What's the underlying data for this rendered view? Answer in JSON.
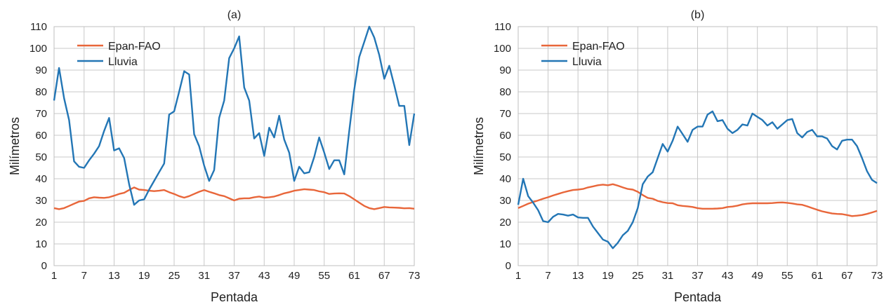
{
  "chart_data": [
    {
      "type": "line",
      "title": "(a)",
      "xlabel": "Pentada",
      "ylabel": "Milímetros",
      "xlim": [
        1,
        73
      ],
      "ylim": [
        0,
        110
      ],
      "x_ticks": [
        "1",
        "7",
        "13",
        "19",
        "25",
        "31",
        "37",
        "43",
        "49",
        "55",
        "61",
        "67",
        "73"
      ],
      "y_ticks": [
        "0",
        "10",
        "20",
        "30",
        "40",
        "50",
        "60",
        "70",
        "80",
        "90",
        "100",
        "110"
      ],
      "grid": true,
      "legend": "top-left",
      "x": [
        1,
        2,
        3,
        4,
        5,
        6,
        7,
        8,
        9,
        10,
        11,
        12,
        13,
        14,
        15,
        16,
        17,
        18,
        19,
        20,
        21,
        22,
        23,
        24,
        25,
        26,
        27,
        28,
        29,
        30,
        31,
        32,
        33,
        34,
        35,
        36,
        37,
        38,
        39,
        40,
        41,
        42,
        43,
        44,
        45,
        46,
        47,
        48,
        49,
        50,
        51,
        52,
        53,
        54,
        55,
        56,
        57,
        58,
        59,
        60,
        61,
        62,
        63,
        64,
        65,
        66,
        67,
        68,
        69,
        70,
        71,
        72,
        73
      ],
      "series": [
        {
          "name": "Epan-FAO",
          "color": "#e8663a",
          "values": [
            26.5,
            26,
            26.5,
            27.5,
            28.5,
            29.5,
            29.8,
            31,
            31.5,
            31.3,
            31.2,
            31.5,
            32.2,
            33,
            33.5,
            34.8,
            36,
            35,
            34.8,
            34.5,
            34.3,
            34.5,
            34.8,
            33.8,
            33,
            32,
            31.3,
            32,
            33,
            34,
            34.8,
            34,
            33.3,
            32.5,
            32,
            31,
            30,
            30.8,
            31,
            31,
            31.5,
            31.8,
            31.3,
            31.5,
            31.8,
            32.5,
            33.3,
            33.8,
            34.5,
            34.8,
            35.2,
            35,
            34.8,
            34.2,
            33.8,
            33,
            33.2,
            33.3,
            33.2,
            32,
            30.5,
            29,
            27.5,
            26.5,
            26,
            26.5,
            27,
            26.8,
            26.7,
            26.6,
            26.4,
            26.5,
            26.2
          ]
        },
        {
          "name": "Lluvia",
          "color": "#2376b5",
          "values": [
            76,
            91,
            77,
            67,
            48,
            45.5,
            45,
            48.5,
            51.5,
            55,
            62,
            68,
            53,
            54,
            49.5,
            37.5,
            28,
            30,
            30.5,
            35,
            39,
            43,
            47,
            69.5,
            71,
            80,
            89.5,
            88,
            60.5,
            55,
            46,
            39,
            44,
            68,
            76,
            95.5,
            100,
            105.5,
            82,
            76,
            58.5,
            61,
            50.5,
            63.5,
            59,
            69,
            58,
            52,
            39,
            45.5,
            42.5,
            43,
            50,
            59,
            52,
            44.5,
            48.5,
            48.5,
            42,
            62,
            81,
            96,
            103,
            110,
            105,
            97,
            86,
            92,
            83,
            73.5,
            73.5,
            55.5,
            70
          ]
        }
      ]
    },
    {
      "type": "line",
      "title": "(b)",
      "xlabel": "Pentada",
      "ylabel": "Milímetros",
      "xlim": [
        1,
        73
      ],
      "ylim": [
        0,
        110
      ],
      "x_ticks": [
        "1",
        "7",
        "13",
        "19",
        "25",
        "31",
        "37",
        "43",
        "49",
        "55",
        "61",
        "67",
        "73"
      ],
      "y_ticks": [
        "0",
        "10",
        "20",
        "30",
        "40",
        "50",
        "60",
        "70",
        "80",
        "90",
        "100",
        "110"
      ],
      "grid": true,
      "legend": "top-left",
      "x": [
        1,
        2,
        3,
        4,
        5,
        6,
        7,
        8,
        9,
        10,
        11,
        12,
        13,
        14,
        15,
        16,
        17,
        18,
        19,
        20,
        21,
        22,
        23,
        24,
        25,
        26,
        27,
        28,
        29,
        30,
        31,
        32,
        33,
        34,
        35,
        36,
        37,
        38,
        39,
        40,
        41,
        42,
        43,
        44,
        45,
        46,
        47,
        48,
        49,
        50,
        51,
        52,
        53,
        54,
        55,
        56,
        57,
        58,
        59,
        60,
        61,
        62,
        63,
        64,
        65,
        66,
        67,
        68,
        69,
        70,
        71,
        72,
        73
      ],
      "series": [
        {
          "name": "Epan-FAO",
          "color": "#e8663a",
          "values": [
            26.5,
            27.5,
            28.5,
            29.3,
            30,
            30.8,
            31.5,
            32.3,
            33,
            33.7,
            34.3,
            34.8,
            35,
            35.3,
            36,
            36.5,
            37,
            37.3,
            37,
            37.5,
            36.8,
            36,
            35.3,
            35,
            34,
            32.5,
            31.2,
            30.8,
            29.8,
            29.2,
            28.8,
            28.7,
            27.8,
            27.5,
            27.3,
            27,
            26.5,
            26.2,
            26.2,
            26.2,
            26.3,
            26.5,
            27,
            27.2,
            27.6,
            28.2,
            28.5,
            28.7,
            28.7,
            28.7,
            28.7,
            28.8,
            29,
            29.1,
            28.9,
            28.6,
            28.2,
            28,
            27.3,
            26.5,
            25.7,
            25,
            24.5,
            24,
            23.8,
            23.7,
            23.3,
            22.8,
            23,
            23.3,
            23.8,
            24.5,
            25.2
          ]
        },
        {
          "name": "Lluvia",
          "color": "#2376b5",
          "values": [
            28,
            40,
            32,
            29,
            25.5,
            20.5,
            20,
            22.5,
            23.8,
            23.5,
            23,
            23.5,
            22.2,
            22,
            22,
            18,
            15,
            12,
            11,
            8,
            10.5,
            14,
            16,
            20,
            26.5,
            37.5,
            41,
            43,
            49.5,
            56,
            52.5,
            57.5,
            64,
            60.5,
            57,
            62.5,
            64,
            64,
            69.5,
            71,
            66.5,
            67,
            63,
            61,
            62.5,
            65,
            64.5,
            70,
            68.5,
            67,
            64.5,
            66,
            63,
            65,
            67,
            67.5,
            61,
            59,
            61.5,
            62.5,
            59.5,
            59.5,
            58.5,
            55,
            53.5,
            57.5,
            58,
            58,
            55,
            49.5,
            43.5,
            39.5,
            38
          ]
        }
      ]
    }
  ]
}
